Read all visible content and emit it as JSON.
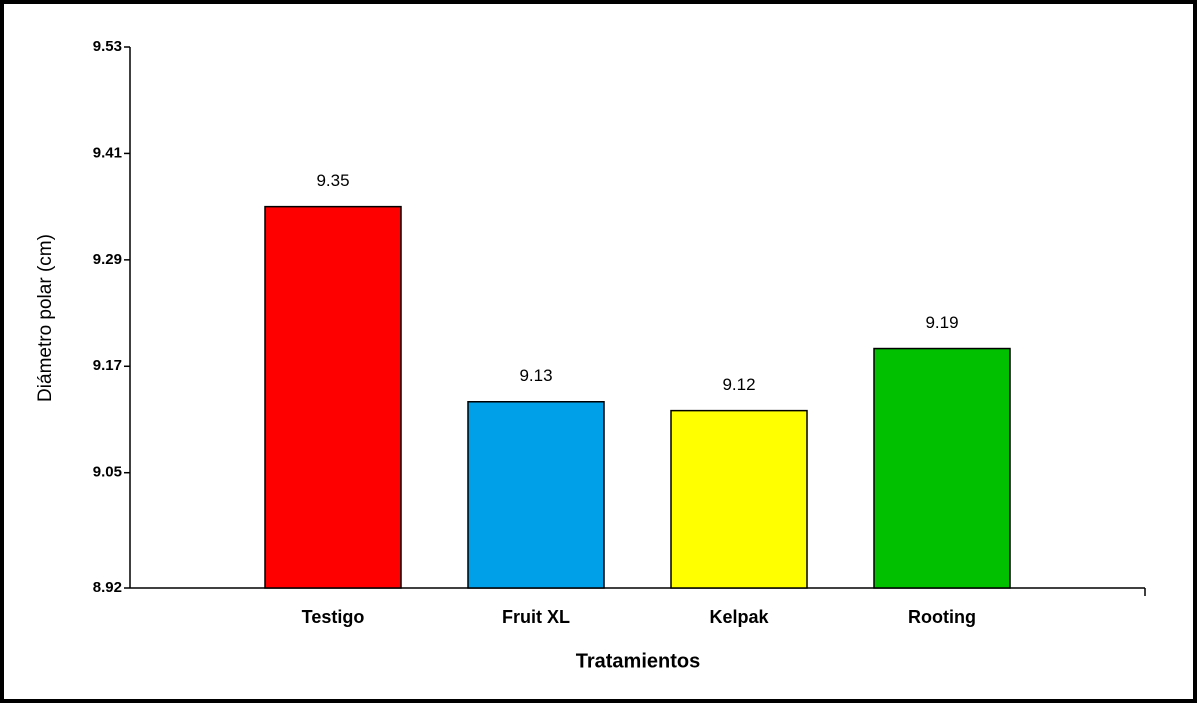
{
  "chart_data": {
    "type": "bar",
    "x_label": "Tratamientos",
    "y_label": "Diámetro polar (cm)",
    "categories": [
      "Testigo",
      "Fruit XL",
      "Kelpak",
      "Rooting"
    ],
    "values": [
      9.35,
      9.13,
      9.12,
      9.19
    ],
    "colors": [
      "#ff0000",
      "#00a0e8",
      "#ffff00",
      "#00c000"
    ],
    "ylim": [
      8.92,
      9.53
    ],
    "yticks": [
      8.92,
      9.05,
      9.17,
      9.29,
      9.41,
      9.53
    ],
    "grid": false
  }
}
